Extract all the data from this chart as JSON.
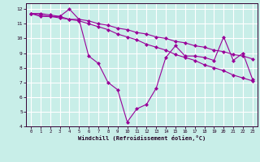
{
  "xlabel": "Windchill (Refroidissement éolien,°C)",
  "bg_color": "#c8eee8",
  "grid_color": "#ffffff",
  "line_color": "#990099",
  "xlim": [
    -0.5,
    23.5
  ],
  "ylim": [
    4,
    12.4
  ],
  "yticks": [
    4,
    5,
    6,
    7,
    8,
    9,
    10,
    11,
    12
  ],
  "xticks": [
    0,
    1,
    2,
    3,
    4,
    5,
    6,
    7,
    8,
    9,
    10,
    11,
    12,
    13,
    14,
    15,
    16,
    17,
    18,
    19,
    20,
    21,
    22,
    23
  ],
  "series": [
    {
      "x": [
        0,
        1,
        2,
        3,
        4,
        5,
        6,
        7,
        8,
        9,
        10,
        11,
        12,
        13,
        14,
        15,
        16,
        17,
        18,
        19,
        20,
        21,
        22,
        23
      ],
      "y": [
        11.7,
        11.7,
        11.6,
        11.5,
        11.3,
        11.3,
        11.2,
        11.0,
        10.9,
        10.7,
        10.6,
        10.4,
        10.3,
        10.1,
        10.0,
        9.8,
        9.7,
        9.5,
        9.4,
        9.2,
        9.1,
        8.9,
        8.8,
        8.6
      ]
    },
    {
      "x": [
        0,
        1,
        2,
        3,
        4,
        5,
        6,
        7,
        8,
        9,
        10,
        11,
        12,
        13,
        14,
        15,
        16,
        17,
        18,
        19,
        20,
        21,
        22,
        23
      ],
      "y": [
        11.7,
        11.6,
        11.5,
        11.4,
        11.3,
        11.2,
        11.0,
        10.8,
        10.6,
        10.3,
        10.1,
        9.9,
        9.6,
        9.4,
        9.2,
        8.9,
        8.7,
        8.5,
        8.2,
        8.0,
        7.8,
        7.5,
        7.3,
        7.1
      ]
    },
    {
      "x": [
        0,
        1,
        2,
        3,
        4,
        5,
        6,
        7,
        8,
        9,
        10,
        11,
        12,
        13,
        14,
        15,
        16,
        17,
        18,
        19,
        20,
        21,
        22,
        23
      ],
      "y": [
        11.7,
        11.5,
        11.5,
        11.5,
        12.0,
        11.3,
        8.8,
        8.3,
        7.0,
        6.5,
        4.3,
        5.2,
        5.5,
        6.6,
        8.7,
        9.5,
        8.8,
        8.8,
        8.7,
        8.5,
        10.1,
        8.5,
        9.0,
        7.2
      ]
    }
  ]
}
